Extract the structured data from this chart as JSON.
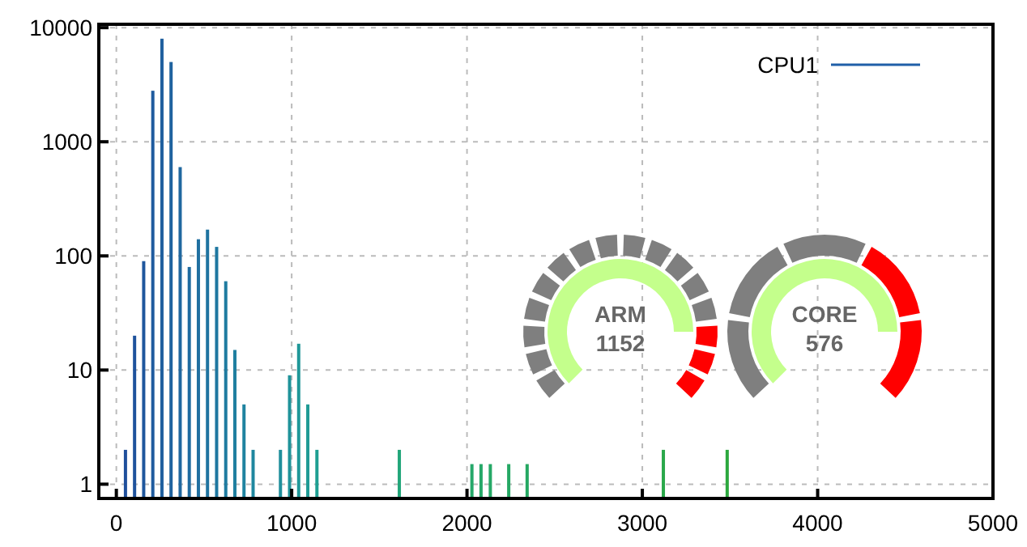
{
  "chart_data": {
    "type": "bar",
    "x": [
      52,
      104,
      156,
      208,
      260,
      312,
      364,
      416,
      468,
      520,
      572,
      624,
      676,
      728,
      780,
      936,
      988,
      1040,
      1092,
      1144,
      1614,
      2028,
      2080,
      2133,
      2238,
      2343,
      3120,
      3484
    ],
    "series": [
      {
        "name": "CPU1",
        "color": "#1f5fa8",
        "values": [
          2,
          20,
          90,
          2800,
          8000,
          5000,
          600,
          80,
          140,
          170,
          120,
          60,
          15,
          5,
          2,
          2,
          9,
          17,
          5,
          2,
          2,
          1.5,
          1.5,
          1.5,
          1.5,
          1.5,
          2,
          2
        ],
        "colors": [
          "#1f4f9c",
          "#1f539d",
          "#1f579d",
          "#1f5b9e",
          "#1f5f9e",
          "#1f639f",
          "#1f679f",
          "#1f6ba0",
          "#1f6fa0",
          "#1f73a0",
          "#1f77a0",
          "#1f7ba0",
          "#1f7fa0",
          "#1f83a0",
          "#1f879f",
          "#1f8f9c",
          "#1f939a",
          "#1f9798",
          "#1f9b95",
          "#1f9f92",
          "#22a67a",
          "#25a86a",
          "#25a868",
          "#25a866",
          "#25a864",
          "#25a862",
          "#2aa84a",
          "#2ca83e"
        ]
      }
    ],
    "xlim": [
      -100,
      5000
    ],
    "xticks": [
      0,
      1000,
      2000,
      3000,
      4000,
      5000
    ],
    "ylim": [
      0.75,
      10700
    ],
    "yticks": [
      1,
      10,
      100,
      1000,
      10000
    ],
    "log": "y",
    "grid": true,
    "legend": "top right",
    "annotations": [
      "ARM",
      "1152",
      "CORE",
      "576"
    ]
  }
}
